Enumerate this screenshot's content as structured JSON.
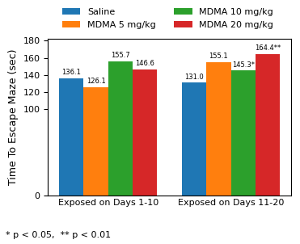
{
  "chart_data": {
    "type": "bar",
    "categories": [
      "Exposed on Days 1-10",
      "Exposed on Days 11-20"
    ],
    "series": [
      {
        "name": "Saline",
        "values": [
          136.1,
          131.0
        ],
        "value_labels": [
          "136.1",
          "131.0"
        ]
      },
      {
        "name": "MDMA 5 mg/kg",
        "values": [
          126.1,
          155.1
        ],
        "value_labels": [
          "126.1",
          "155.1"
        ]
      },
      {
        "name": "MDMA 10 mg/kg",
        "values": [
          155.7,
          145.3
        ],
        "value_labels": [
          "155.7",
          "145.3*"
        ]
      },
      {
        "name": "MDMA 20 mg/kg",
        "values": [
          146.6,
          164.4
        ],
        "value_labels": [
          "146.6",
          "164.4**"
        ]
      }
    ],
    "y_label": "Time To Escape Maze (sec)",
    "annotations": [
      "* p < 0.05,  ** p < 0.01"
    ],
    "ylim": [
      0,
      182
    ],
    "yticks": [
      0,
      100,
      120,
      140,
      160,
      180
    ],
    "data_labels": true,
    "legend": "upper center",
    "grid": false
  }
}
